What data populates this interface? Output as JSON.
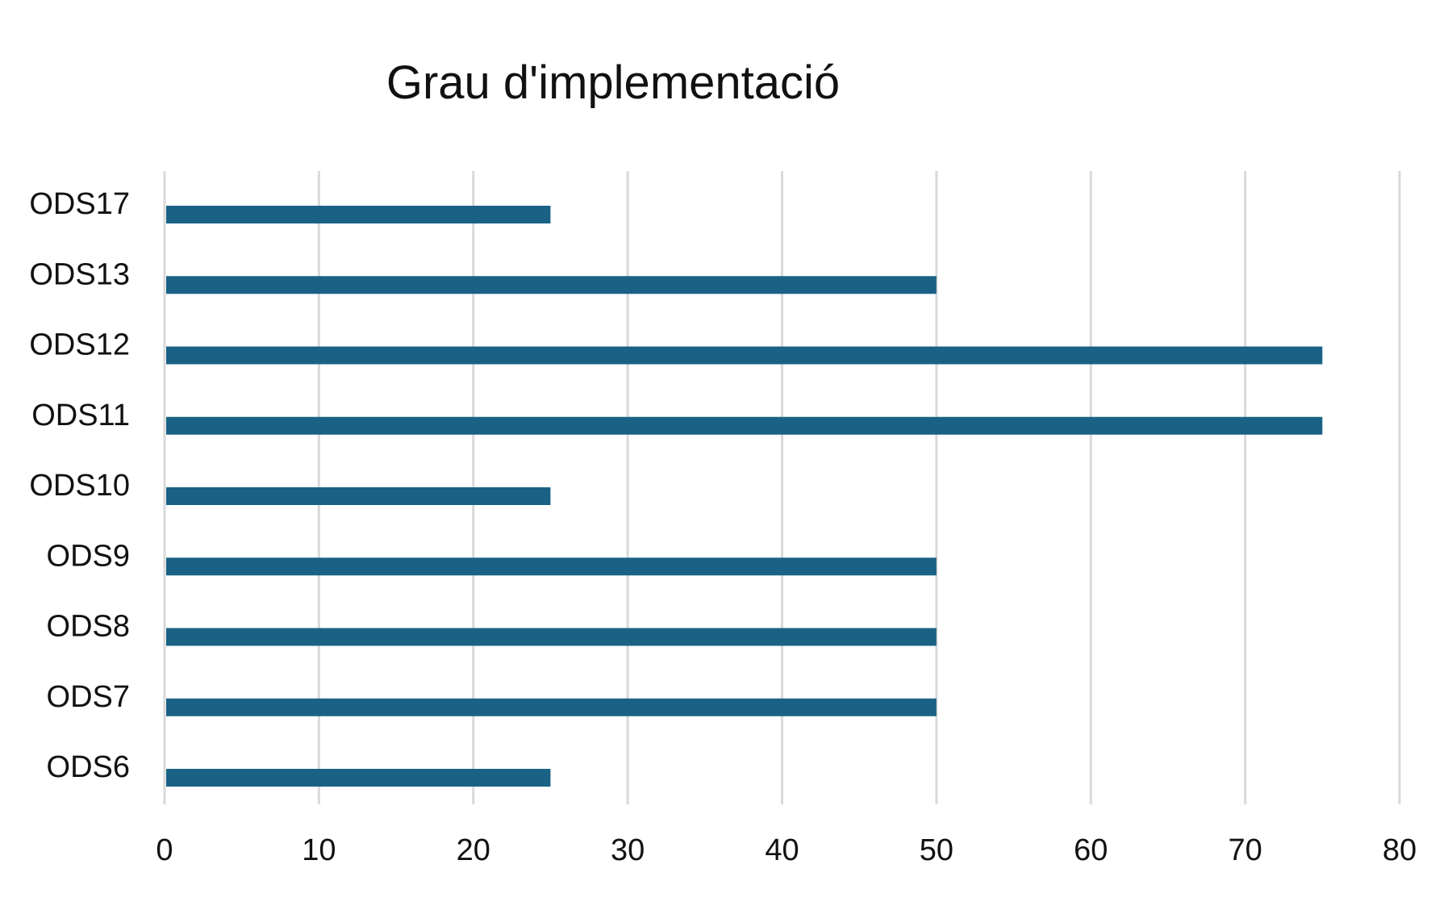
{
  "chart_data": {
    "type": "bar",
    "orientation": "horizontal",
    "title": "Grau d'implementació",
    "xlabel": "",
    "ylabel": "",
    "categories": [
      "ODS17",
      "ODS13",
      "ODS12",
      "ODS11",
      "ODS10",
      "ODS9",
      "ODS8",
      "ODS7",
      "ODS6"
    ],
    "values": [
      25,
      50,
      75,
      75,
      25,
      50,
      50,
      50,
      25
    ],
    "xlim": [
      0,
      80
    ],
    "xticks": [
      0,
      10,
      20,
      30,
      40,
      50,
      60,
      70,
      80
    ],
    "grid": "vertical",
    "legend": "none",
    "colors": {
      "bar": "#1a6285",
      "grid": "#d9d9d9",
      "text": "#111111"
    }
  }
}
